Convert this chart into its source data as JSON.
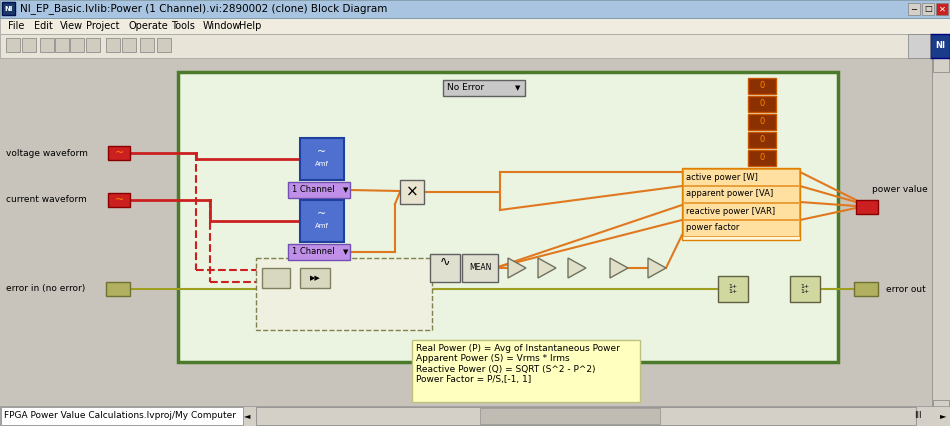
{
  "title_bar_text": "NI_EP_Basic.lvlib:Power (1 Channel).vi:2890002 (clone) Block Diagram",
  "title_bar_color": "#a8c4e0",
  "menu_items": [
    "File",
    "Edit",
    "View",
    "Project",
    "Operate",
    "Tools",
    "Window",
    "Help"
  ],
  "status_bar_text": "FPGA Power Value Calculations.lvproj/My Computer",
  "bg_color": "#d4d0c8",
  "green_border_color": "#4a7a2a",
  "green_border_bg": "#eaf4e0",
  "orange_color": "#e07820",
  "red_color": "#cc2020",
  "yellow_bg": "#ffffc0",
  "annotation_text": "Real Power (P) = Avg of Instantaneous Power\nApparent Power (S) = Vrms * Irms\nReactive Power (Q) = SQRT (S^2 - P^2)\nPower Factor = P/S,[-1, 1]",
  "power_labels": [
    "active power [W]",
    "apparent power [VA]",
    "reactive power [VAR]",
    "power factor"
  ],
  "no_error_text": "No Error",
  "one_channel_text": "1 Channel",
  "mean_text": "MEAN"
}
